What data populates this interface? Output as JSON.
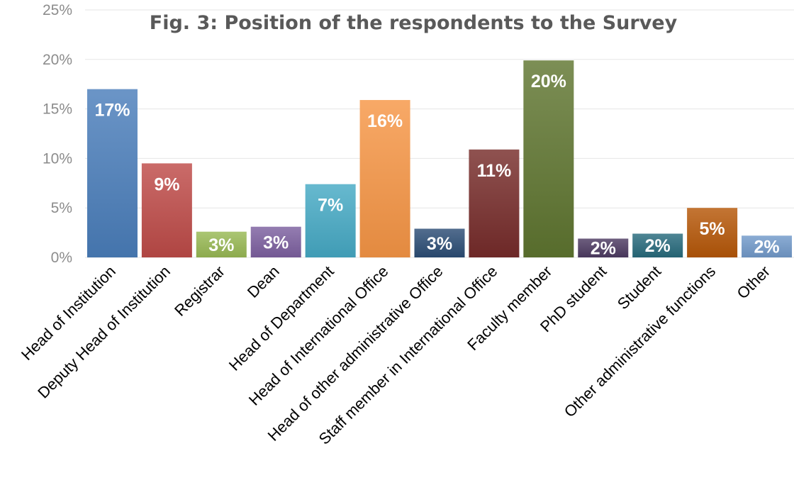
{
  "chart_data": {
    "type": "bar",
    "title": "Fig. 3: Position of the respondents to the Survey",
    "categories": [
      "Head of Institution",
      "Deputy Head of Institution",
      "Registrar",
      "Dean",
      "Head of Department",
      "Head of International Office",
      "Head of other administrative Office",
      "Staff member in International Office",
      "Faculty member",
      "PhD student",
      "Student",
      "Other administrative functions",
      "Other"
    ],
    "values": [
      17,
      9.5,
      2.6,
      3.1,
      7.4,
      15.9,
      2.9,
      10.9,
      19.9,
      1.9,
      2.4,
      5.0,
      2.2
    ],
    "data_labels": [
      "17%",
      "9%",
      "3%",
      "3%",
      "7%",
      "16%",
      "3%",
      "11%",
      "20%",
      "2%",
      "2%",
      "5%",
      "2%"
    ],
    "colors": [
      "#4a7ebb",
      "#be4b48",
      "#98b954",
      "#7d60a0",
      "#46aac5",
      "#f79646",
      "#2c4d75",
      "#772c2a",
      "#5f7530",
      "#4d3b62",
      "#276a7c",
      "#b65708",
      "#729aca"
    ],
    "yticks": [
      "0%",
      "5%",
      "10%",
      "15%",
      "20%",
      "25%"
    ],
    "ylim": [
      0,
      25
    ],
    "grid": true,
    "legend": "none"
  }
}
